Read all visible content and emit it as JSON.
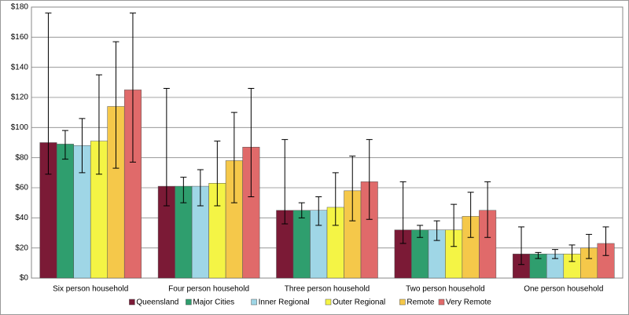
{
  "chart_data": {
    "type": "bar",
    "categories": [
      "Six person household",
      "Four person household",
      "Three person household",
      "Two person household",
      "One person household"
    ],
    "series": [
      {
        "name": "Queensland",
        "color": "#7b1a36",
        "values": [
          90,
          61,
          45,
          32,
          16
        ],
        "lower": [
          69,
          48,
          36,
          23,
          9
        ],
        "upper": [
          176,
          126,
          92,
          64,
          34
        ]
      },
      {
        "name": "Major Cities",
        "color": "#2f9e6e",
        "values": [
          89,
          61,
          45,
          32,
          16
        ],
        "lower": [
          79,
          50,
          40,
          27,
          13
        ],
        "upper": [
          98,
          67,
          50,
          35,
          17
        ]
      },
      {
        "name": "Inner Regional",
        "color": "#9fd6e6",
        "values": [
          88,
          61,
          45,
          32,
          16
        ],
        "lower": [
          70,
          48,
          35,
          25,
          13
        ],
        "upper": [
          106,
          72,
          54,
          38,
          19
        ]
      },
      {
        "name": "Outer Regional",
        "color": "#f4f445",
        "values": [
          91,
          63,
          47,
          32,
          16
        ],
        "lower": [
          69,
          48,
          35,
          21,
          11
        ],
        "upper": [
          135,
          91,
          70,
          49,
          22
        ]
      },
      {
        "name": "Remote",
        "color": "#f5c84a",
        "values": [
          114,
          78,
          58,
          41,
          20
        ],
        "lower": [
          73,
          50,
          38,
          27,
          13
        ],
        "upper": [
          157,
          110,
          81,
          57,
          29
        ]
      },
      {
        "name": "Very Remote",
        "color": "#e06a6a",
        "values": [
          125,
          87,
          64,
          45,
          23
        ],
        "lower": [
          77,
          54,
          39,
          27,
          15
        ],
        "upper": [
          176,
          126,
          92,
          64,
          34
        ]
      }
    ],
    "ylim": [
      0,
      180
    ],
    "yticks": [
      {
        "value": 0,
        "label": "$0"
      },
      {
        "value": 20,
        "label": "$20"
      },
      {
        "value": 40,
        "label": "$40"
      },
      {
        "value": 60,
        "label": "$60"
      },
      {
        "value": 80,
        "label": "$80"
      },
      {
        "value": 100,
        "label": "$100"
      },
      {
        "value": 120,
        "label": "$120"
      },
      {
        "value": 140,
        "label": "$140"
      },
      {
        "value": 160,
        "label": "$160"
      },
      {
        "value": 180,
        "label": "$180"
      }
    ],
    "grid": true
  }
}
